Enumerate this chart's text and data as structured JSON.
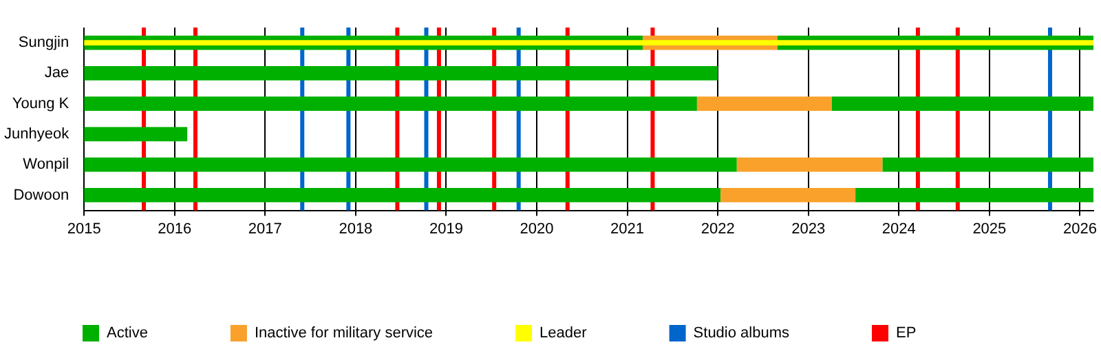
{
  "chart_data": {
    "type": "bar",
    "orientation": "horizontal",
    "categories": [
      "Sungjin",
      "Jae",
      "Young K",
      "Junhyeok",
      "Wonpil",
      "Dowoon"
    ],
    "series": [
      {
        "name": "Active",
        "color": "#00b000",
        "base": [
          2015,
          2015,
          2015,
          2015,
          2015,
          2015
        ],
        "values": [
          6.17,
          7.0,
          6.77,
          1.14,
          7.21,
          7.03
        ]
      },
      {
        "name": "Inactive for military service",
        "color": "#f9a12b",
        "base": [
          2021.17,
          null,
          2021.77,
          null,
          2022.21,
          2022.03
        ],
        "values": [
          1.49,
          null,
          1.49,
          null,
          1.61,
          1.49
        ]
      },
      {
        "color": "#00b000",
        "base": [
          2022.66,
          null,
          2023.26,
          null,
          2023.82,
          2023.52
        ],
        "values": [
          3.49,
          null,
          2.89,
          null,
          2.33,
          2.63
        ]
      },
      {
        "name": "Leader",
        "color": "#ffff00",
        "base": [
          2015,
          null,
          null,
          null,
          null,
          null
        ],
        "values": [
          11.15,
          null,
          null,
          null,
          null,
          null
        ]
      }
    ],
    "xlim": [
      2015,
      2026.15
    ],
    "xticks": [
      2015,
      2016,
      2017,
      2018,
      2019,
      2020,
      2021,
      2022,
      2023,
      2024,
      2025,
      2026
    ],
    "grid": "x",
    "legend": "bottom",
    "ref_lines": [
      {
        "axis": "x",
        "value": 2017.41,
        "label": "Studio albums",
        "color": "#0066cc"
      },
      {
        "axis": "x",
        "value": 2017.92,
        "color": "#0066cc"
      },
      {
        "axis": "x",
        "value": 2018.78,
        "color": "#0066cc"
      },
      {
        "axis": "x",
        "value": 2019.8,
        "color": "#0066cc"
      },
      {
        "axis": "x",
        "value": 2025.67,
        "color": "#0066cc"
      },
      {
        "axis": "x",
        "value": 2015.66,
        "label": "EP",
        "color": "#ff0000"
      },
      {
        "axis": "x",
        "value": 2016.23,
        "color": "#ff0000"
      },
      {
        "axis": "x",
        "value": 2018.46,
        "color": "#ff0000"
      },
      {
        "axis": "x",
        "value": 2018.92,
        "color": "#ff0000"
      },
      {
        "axis": "x",
        "value": 2019.53,
        "color": "#ff0000"
      },
      {
        "axis": "x",
        "value": 2020.34,
        "color": "#ff0000"
      },
      {
        "axis": "x",
        "value": 2021.28,
        "color": "#ff0000"
      },
      {
        "axis": "x",
        "value": 2024.21,
        "color": "#ff0000"
      },
      {
        "axis": "x",
        "value": 2024.65,
        "color": "#ff0000"
      }
    ]
  }
}
